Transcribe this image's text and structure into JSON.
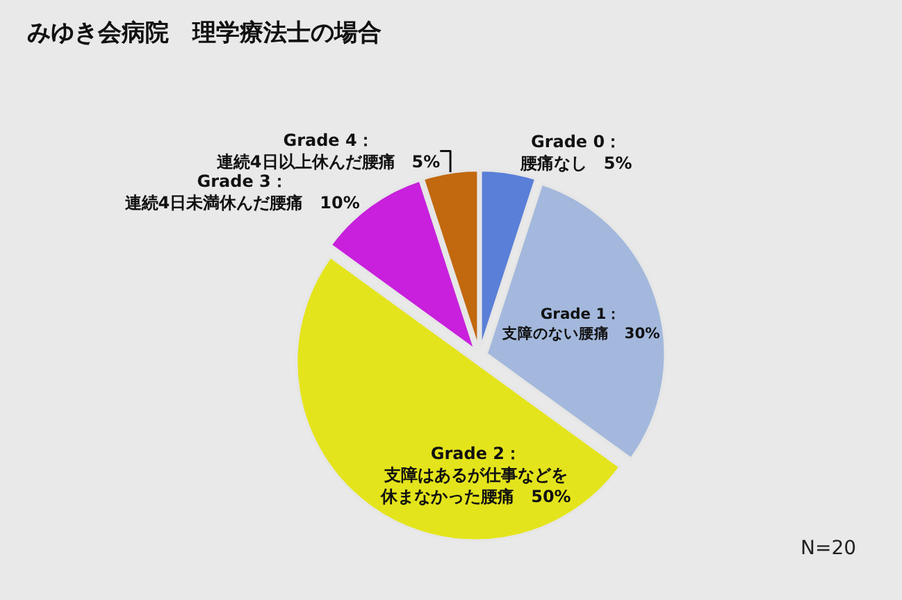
{
  "chart_data": {
    "type": "pie",
    "title": "みゆき会病院　理学療法士の場合",
    "categories": [
      "Grade 0：腰痛なし",
      "Grade 1：支障のない腰痛",
      "Grade 2：支障はあるが仕事などを休まなかった腰痛",
      "Grade 3：連続4日未満休んだ腰痛",
      "Grade 4：連続4日以上休んだ腰痛"
    ],
    "values": [
      5,
      30,
      50,
      10,
      5
    ],
    "value_labels": [
      "5%",
      "30%",
      "50%",
      "10%",
      "5%"
    ],
    "colors": [
      "#5a7fd8",
      "#a3b8dc",
      "#e4e41c",
      "#c820dc",
      "#c2680e"
    ],
    "annotations": [
      "N=20"
    ],
    "legend": false
  }
}
